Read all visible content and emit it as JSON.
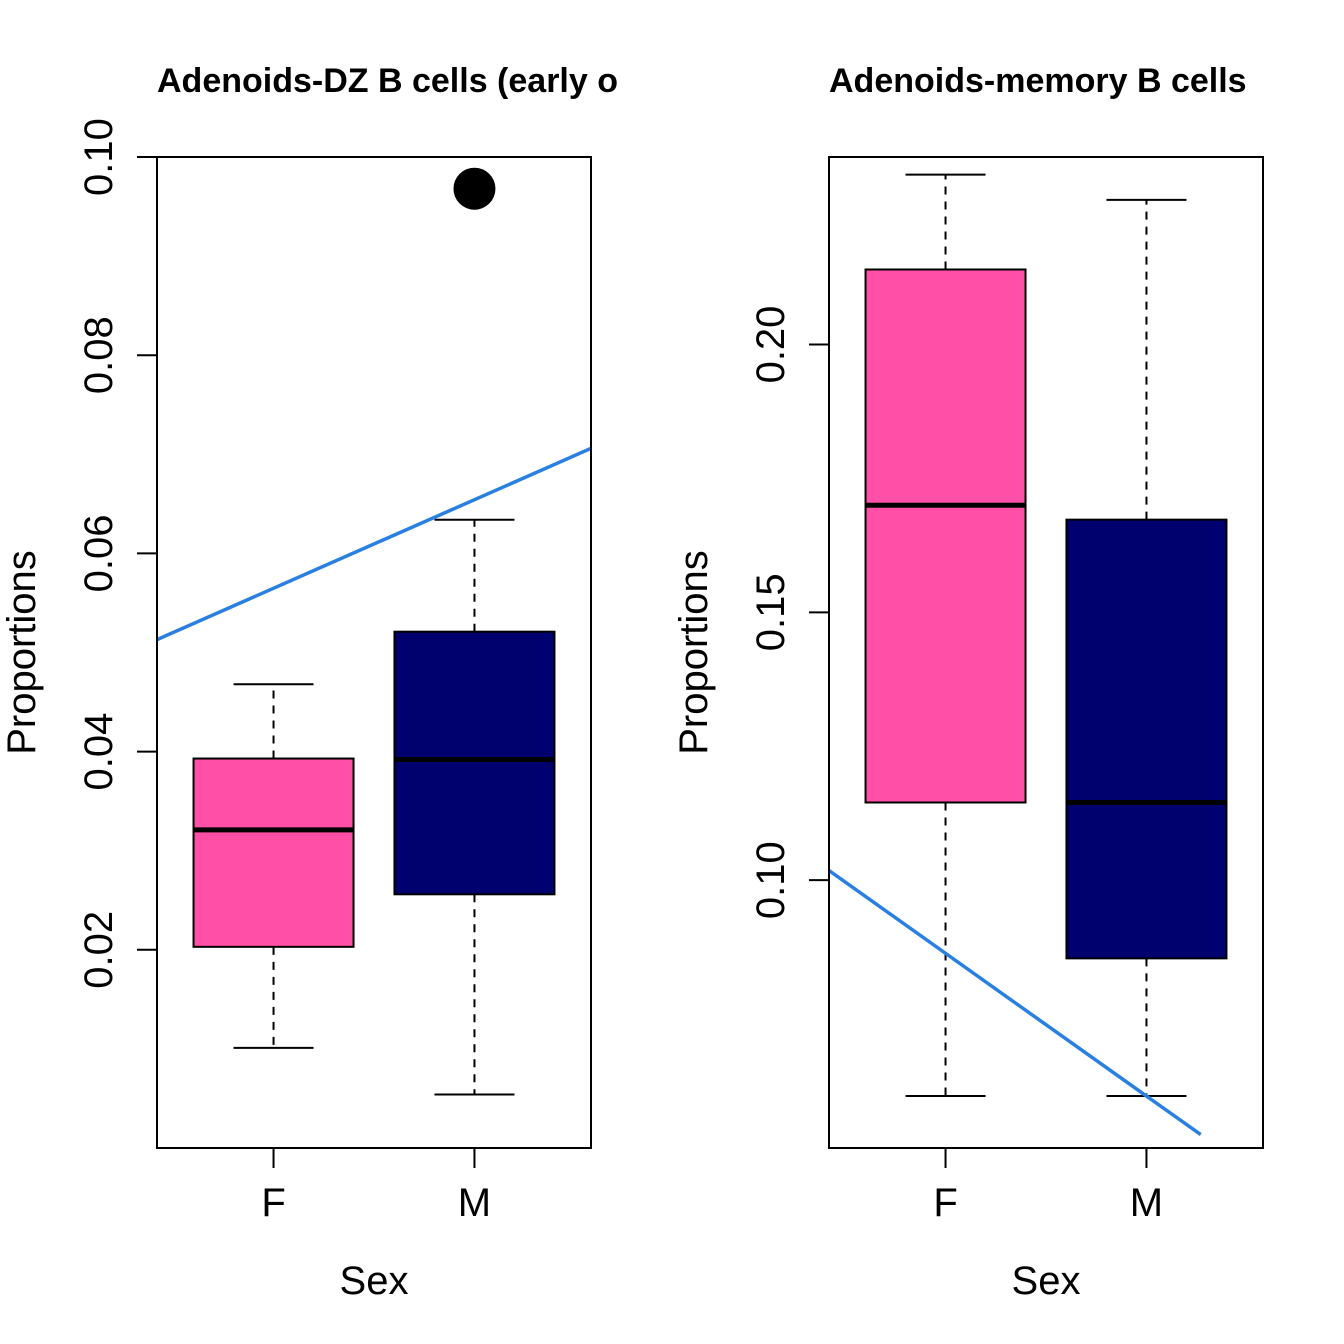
{
  "chart_data": [
    {
      "type": "boxplot",
      "title": "Adenoids-DZ B cells (early o",
      "xlabel": "Sex",
      "ylabel": "Proportions",
      "categories": [
        "F",
        "M"
      ],
      "ylim": [
        0.0,
        0.1
      ],
      "yticks": [
        0.02,
        0.04,
        0.06,
        0.08,
        0.1
      ],
      "ytick_labels": [
        "0.02",
        "0.04",
        "0.06",
        "0.08",
        "0.10"
      ],
      "boxes": [
        {
          "category": "F",
          "whisker_low": 0.0101,
          "q1": 0.0203,
          "median": 0.0321,
          "q3": 0.0393,
          "whisker_high": 0.0468,
          "outliers": []
        },
        {
          "category": "M",
          "whisker_low": 0.0054,
          "q1": 0.0256,
          "median": 0.0392,
          "q3": 0.0521,
          "whisker_high": 0.0634,
          "outliers": [
            0.0968
          ]
        }
      ],
      "trend_line": {
        "start": {
          "x": 0.42,
          "y": 0.0513
        },
        "end": {
          "x": 2.58,
          "y": 0.0706
        }
      },
      "colors": {
        "F": "#ff4fa6",
        "M": "#00006e",
        "trend": "#2a80e0"
      }
    },
    {
      "type": "boxplot",
      "title": "Adenoids-memory B cells",
      "xlabel": "Sex",
      "ylabel": "Proportions",
      "categories": [
        "F",
        "M"
      ],
      "ylim": [
        0.05,
        0.235
      ],
      "yticks": [
        0.1,
        0.15,
        0.2
      ],
      "ytick_labels": [
        "0.10",
        "0.15",
        "0.20"
      ],
      "boxes": [
        {
          "category": "F",
          "whisker_low": 0.0597,
          "q1": 0.1145,
          "median": 0.17,
          "q3": 0.214,
          "whisker_high": 0.2317,
          "outliers": []
        },
        {
          "category": "M",
          "whisker_low": 0.0597,
          "q1": 0.0854,
          "median": 0.1145,
          "q3": 0.1673,
          "whisker_high": 0.227,
          "outliers": []
        }
      ],
      "trend_line": {
        "start": {
          "x": 0.42,
          "y": 0.1018
        },
        "end": {
          "x": 2.27,
          "y": 0.0525
        }
      },
      "colors": {
        "F": "#ff4fa6",
        "M": "#00006e",
        "trend": "#2a80e0"
      }
    }
  ]
}
